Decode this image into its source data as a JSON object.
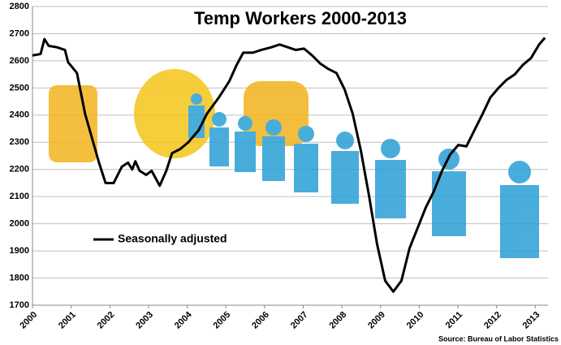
{
  "chart_data": {
    "type": "line",
    "title": "Temp Workers 2000-2013",
    "source": "Source: Bureau of Labor Statistics",
    "x": [
      2000.0,
      2000.21,
      2000.31,
      2000.42,
      2000.63,
      2000.84,
      2000.92,
      2001.15,
      2001.36,
      2001.57,
      2001.72,
      2001.89,
      2002.1,
      2002.31,
      2002.47,
      2002.58,
      2002.66,
      2002.77,
      2002.94,
      2003.08,
      2003.29,
      2003.46,
      2003.61,
      2003.82,
      2004.03,
      2004.3,
      2004.51,
      2004.82,
      2005.09,
      2005.28,
      2005.45,
      2005.7,
      2005.91,
      2006.18,
      2006.39,
      2006.6,
      2006.81,
      2007.02,
      2007.23,
      2007.44,
      2007.65,
      2007.86,
      2008.07,
      2008.28,
      2008.49,
      2008.7,
      2008.91,
      2009.12,
      2009.33,
      2009.54,
      2009.75,
      2009.96,
      2010.17,
      2010.38,
      2010.59,
      2010.8,
      2011.01,
      2011.22,
      2011.43,
      2011.64,
      2011.84,
      2012.05,
      2012.26,
      2012.47,
      2012.68,
      2012.89,
      2013.1,
      2013.25
    ],
    "series": [
      {
        "name": "Seasonally adjusted",
        "color": "#000000",
        "values": [
          2620,
          2625,
          2680,
          2655,
          2650,
          2640,
          2595,
          2555,
          2405,
          2300,
          2225,
          2150,
          2150,
          2210,
          2225,
          2200,
          2230,
          2195,
          2180,
          2195,
          2140,
          2195,
          2260,
          2275,
          2300,
          2345,
          2405,
          2465,
          2525,
          2585,
          2630,
          2630,
          2640,
          2650,
          2660,
          2650,
          2640,
          2645,
          2620,
          2590,
          2570,
          2555,
          2495,
          2405,
          2270,
          2105,
          1925,
          1790,
          1750,
          1790,
          1910,
          1985,
          2060,
          2120,
          2195,
          2255,
          2290,
          2285,
          2345,
          2405,
          2465,
          2500,
          2530,
          2550,
          2585,
          2610,
          2660,
          2685
        ]
      }
    ],
    "xlim": [
      2000,
      2013.33
    ],
    "xticks": [
      2000,
      2001,
      2002,
      2003,
      2004,
      2005,
      2006,
      2007,
      2008,
      2009,
      2010,
      2011,
      2012,
      2013
    ],
    "ylim": [
      1700,
      2800
    ],
    "yticks": [
      1700,
      1800,
      1900,
      2000,
      2100,
      2200,
      2300,
      2400,
      2500,
      2600,
      2700,
      2800
    ],
    "grid": true,
    "legend_position": "lower left"
  }
}
